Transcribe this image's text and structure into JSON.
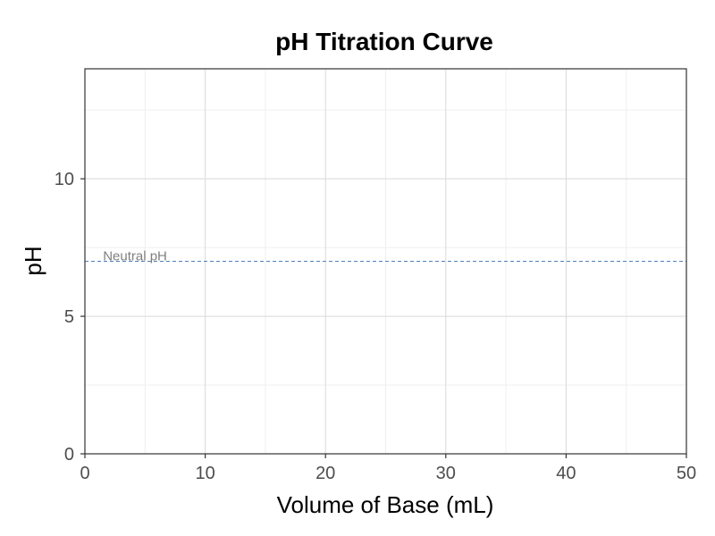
{
  "chart_data": {
    "type": "line",
    "title": "pH Titration Curve",
    "xlabel": "Volume of Base (mL)",
    "ylabel": "pH",
    "xlim": [
      0,
      50
    ],
    "ylim": [
      0,
      14
    ],
    "x_ticks": [
      0,
      10,
      20,
      30,
      40,
      50
    ],
    "x_tick_labels": [
      "0",
      "10",
      "20",
      "30",
      "40",
      "50"
    ],
    "y_ticks": [
      0,
      5,
      10
    ],
    "y_tick_labels": [
      "0",
      "5",
      "10"
    ],
    "x_minor_gridlines": [
      5,
      15,
      25,
      35,
      45
    ],
    "y_minor_gridlines": [
      2.5,
      7.5,
      12.5
    ],
    "grid": true,
    "series": [],
    "reference_lines": [
      {
        "orientation": "horizontal",
        "y": 7,
        "style": "dashed",
        "color": "#4f81bd",
        "label": "Neutral pH",
        "label_x": 1.5
      }
    ],
    "colors": {
      "grid_major": "#d9d9d9",
      "grid_minor": "#efefef",
      "panel_border": "#333333",
      "tick_text": "#4d4d4d"
    }
  }
}
